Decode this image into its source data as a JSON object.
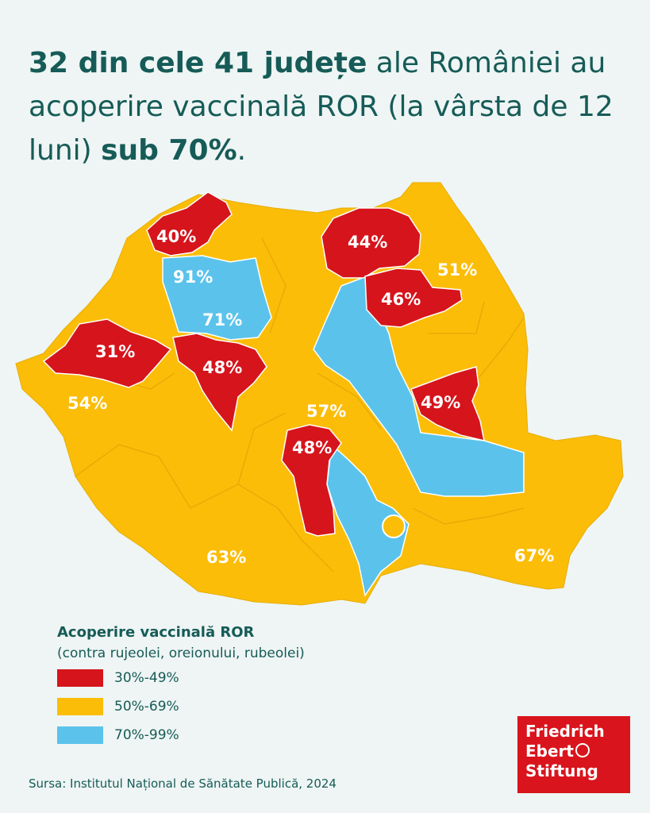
{
  "title": {
    "part1": "32 din cele 41 județe",
    "part2": " ale României au acoperire vaccinală ROR (la vârsta de 12 luni) ",
    "part3": "sub 70%",
    "part4": "."
  },
  "colors": {
    "red": "#d6141c",
    "yellow": "#fbbd08",
    "blue": "#5bc3eb",
    "background": "#eef5f4",
    "text": "#165b57"
  },
  "map_labels": {
    "satu_mare": "40%",
    "maramures": "44%",
    "botosani": "51%",
    "cluj_north": "91%",
    "cluj": "71%",
    "neamt": "46%",
    "arad": "31%",
    "alba": "48%",
    "timis": "54%",
    "sibiu": "57%",
    "vrancea": "49%",
    "arges": "48%",
    "dolj": "63%",
    "constanta": "67%"
  },
  "legend": {
    "title": "Acoperire vaccinală ROR",
    "subtitle": "(contra rujeolei, oreionului, rubeolei)",
    "items": [
      {
        "label": "30%-49%",
        "color": "#d6141c"
      },
      {
        "label": "50%-69%",
        "color": "#fbbd08"
      },
      {
        "label": "70%-99%",
        "color": "#5bc3eb"
      }
    ]
  },
  "source": "Sursa: Institutul Național de Sănătate Publică, 2024",
  "logo": {
    "line1": "Friedrich",
    "line2": "Ebert",
    "line3": "Stiftung"
  }
}
